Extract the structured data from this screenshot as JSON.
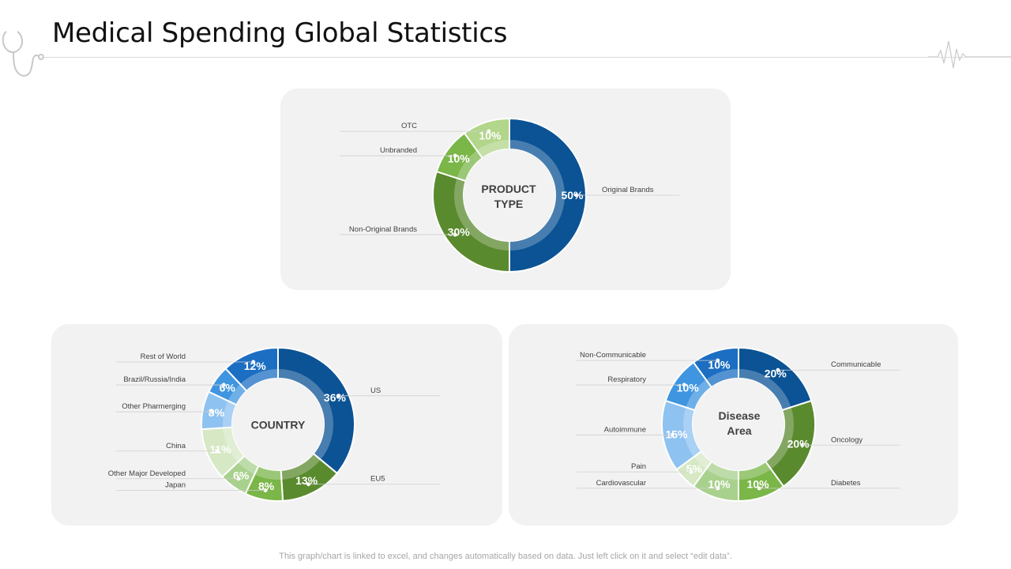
{
  "page": {
    "title": "Medical Spending Global Statistics",
    "footer": "This graph/chart is linked to excel, and changes automatically based on data. Just left click on it and select “edit data”."
  },
  "chart_data": [
    {
      "type": "donut",
      "center_label": "PRODUCT\nTYPE",
      "categories": [
        "Original Brands",
        "Non-Original Brands",
        "Unbranded",
        "OTC"
      ],
      "values": [
        50,
        30,
        10,
        10
      ],
      "value_labels": [
        "50%",
        "30%",
        "10%",
        "10%"
      ],
      "colors": [
        "#0b5394",
        "#5a8a2e",
        "#7ab648",
        "#b2d68a"
      ]
    },
    {
      "type": "donut",
      "center_label": "COUNTRY",
      "categories": [
        "US",
        "EU5",
        "Japan",
        "Other Major Developed",
        "China",
        "Other Pharmerging",
        "Brazil/Russia/India",
        "Rest of World"
      ],
      "values": [
        36,
        13,
        8,
        6,
        11,
        8,
        6,
        12
      ],
      "value_labels": [
        "36%",
        "13%",
        "8%",
        "6%",
        "11%",
        "8%",
        "6%",
        "12%"
      ],
      "colors": [
        "#0b5394",
        "#5a8a2e",
        "#7ab648",
        "#a9d18e",
        "#d6e8c4",
        "#8ec2f0",
        "#3f95e0",
        "#1c6ec2"
      ]
    },
    {
      "type": "donut",
      "center_label": "Disease\nArea",
      "categories": [
        "Communicable",
        "Oncology",
        "Diabetes",
        "Cardiovascular",
        "Pain",
        "Autoimmune",
        "Respiratory",
        "Non-Communicable"
      ],
      "values": [
        20,
        20,
        10,
        10,
        5,
        15,
        10,
        10
      ],
      "value_labels": [
        "20%",
        "20%",
        "10%",
        "10%",
        "5%",
        "15%",
        "10%",
        "10%"
      ],
      "colors": [
        "#0b5394",
        "#5a8a2e",
        "#7ab648",
        "#a9d18e",
        "#d6e8c4",
        "#8ec2f0",
        "#3f95e0",
        "#1c6ec2"
      ]
    }
  ]
}
